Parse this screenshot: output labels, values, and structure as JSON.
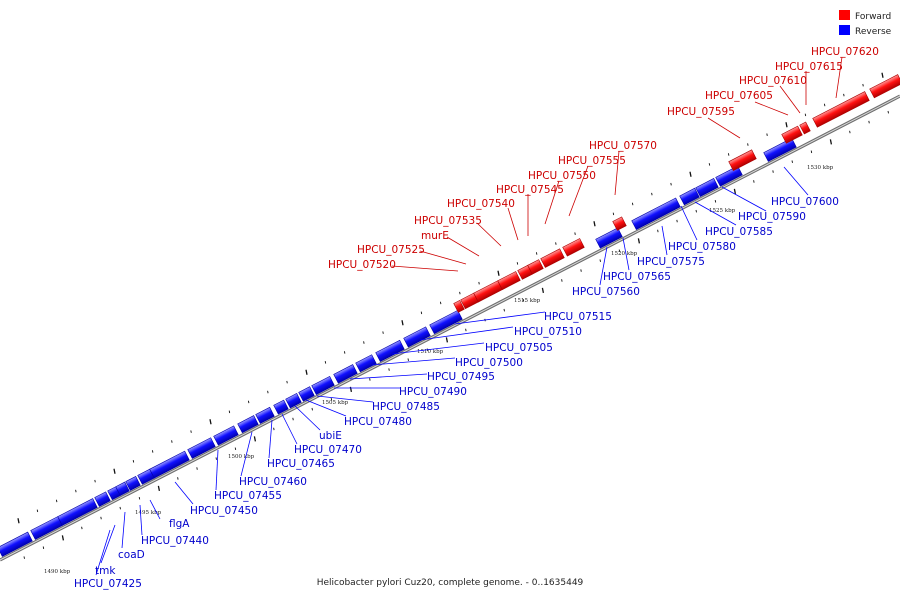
{
  "caption": "Helicobacter pylori Cuz20, complete genome. - 0..1635449",
  "legend": [
    {
      "label": "Forward",
      "color": "#ff0000"
    },
    {
      "label": "Reverse",
      "color": "#0000ff"
    }
  ],
  "scale_labels": [
    "1490 kbp",
    "1495 kbp",
    "1500 kbp",
    "1505 kbp",
    "1510 kbp",
    "1515 kbp",
    "1520 kbp",
    "1525 kbp",
    "1530 kbp"
  ],
  "reverse_labels": [
    "HPCU_07425",
    "tmk",
    "coaD",
    "HPCU_07440",
    "flgA",
    "HPCU_07450",
    "HPCU_07455",
    "HPCU_07460",
    "HPCU_07465",
    "HPCU_07470",
    "ubiE",
    "HPCU_07480",
    "HPCU_07485",
    "HPCU_07490",
    "HPCU_07495",
    "HPCU_07500",
    "HPCU_07505",
    "HPCU_07510",
    "HPCU_07515",
    "HPCU_07560",
    "HPCU_07565",
    "HPCU_07575",
    "HPCU_07580",
    "HPCU_07585",
    "HPCU_07590",
    "HPCU_07600"
  ],
  "forward_labels": [
    "HPCU_07520",
    "HPCU_07525",
    "murE",
    "HPCU_07535",
    "HPCU_07540",
    "HPCU_07545",
    "HPCU_07550",
    "HPCU_07555",
    "HPCU_07570",
    "HPCU_07595",
    "HPCU_07605",
    "HPCU_07610",
    "HPCU_07615",
    "HPCU_07620"
  ]
}
